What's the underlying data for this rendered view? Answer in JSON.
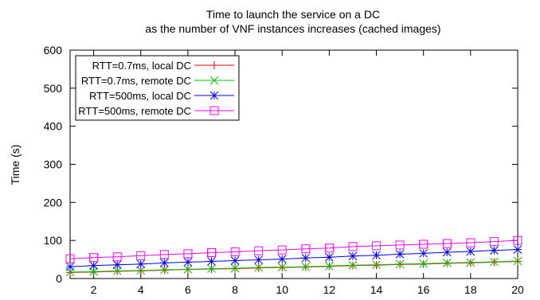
{
  "chart_data": {
    "type": "line",
    "title": "Time to launch the service on a DC",
    "subtitle": "as the number of VNF instances increases (cached images)",
    "xlabel": "",
    "ylabel": "Time (s)",
    "xlim": [
      1,
      20
    ],
    "ylim": [
      0,
      600
    ],
    "x_ticks": [
      2,
      4,
      6,
      8,
      10,
      12,
      14,
      16,
      18,
      20
    ],
    "y_ticks": [
      0,
      100,
      200,
      300,
      400,
      500,
      600
    ],
    "grid": false,
    "legend_position": "top-left",
    "x": [
      1,
      2,
      3,
      4,
      5,
      6,
      7,
      8,
      9,
      10,
      11,
      12,
      13,
      14,
      15,
      16,
      17,
      18,
      19,
      20
    ],
    "series": [
      {
        "name": "RTT=0.7ms, local DC",
        "color": "#ff0000",
        "marker": "plus",
        "values": [
          16,
          17,
          19,
          20,
          22,
          24,
          25,
          26,
          28,
          29,
          30,
          32,
          34,
          35,
          37,
          38,
          40,
          41,
          43,
          45
        ]
      },
      {
        "name": "RTT=0.7ms, remote DC",
        "color": "#00c000",
        "marker": "x",
        "values": [
          17,
          18,
          20,
          21,
          23,
          24,
          26,
          27,
          29,
          30,
          31,
          33,
          35,
          36,
          38,
          39,
          41,
          42,
          44,
          46
        ]
      },
      {
        "name": "RTT=500ms, local DC",
        "color": "#0000ff",
        "marker": "star",
        "values": [
          31,
          34,
          36,
          38,
          41,
          43,
          45,
          47,
          49,
          51,
          54,
          56,
          59,
          61,
          64,
          66,
          69,
          71,
          74,
          76
        ]
      },
      {
        "name": "RTT=500ms, remote DC",
        "color": "#ff00ff",
        "marker": "square",
        "values": [
          52,
          55,
          57,
          60,
          63,
          65,
          68,
          70,
          73,
          75,
          78,
          80,
          84,
          86,
          88,
          90,
          92,
          94,
          97,
          100
        ]
      }
    ]
  }
}
